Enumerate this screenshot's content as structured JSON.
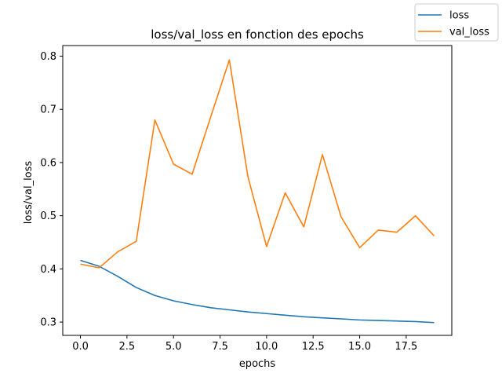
{
  "chart_data": {
    "type": "line",
    "title": "loss/val_loss en fonction des epochs",
    "xlabel": "epochs",
    "ylabel": "loss/val_loss",
    "xlim": [
      -0.95,
      19.95
    ],
    "ylim": [
      0.275,
      0.82
    ],
    "x_ticks": [
      0.0,
      2.5,
      5.0,
      7.5,
      10.0,
      12.5,
      15.0,
      17.5
    ],
    "x_tick_labels": [
      "0.0",
      "2.5",
      "5.0",
      "7.5",
      "10.0",
      "12.5",
      "15.0",
      "17.5"
    ],
    "y_ticks": [
      0.3,
      0.4,
      0.5,
      0.6,
      0.7,
      0.8
    ],
    "y_tick_labels": [
      "0.3",
      "0.4",
      "0.5",
      "0.6",
      "0.7",
      "0.8"
    ],
    "grid": false,
    "legend_position": "top-right (outside plot area)",
    "x": [
      0,
      1,
      2,
      3,
      4,
      5,
      6,
      7,
      8,
      9,
      10,
      11,
      12,
      13,
      14,
      15,
      16,
      17,
      18,
      19
    ],
    "series": [
      {
        "name": "loss",
        "color": "#1f77b4",
        "values": [
          0.416,
          0.405,
          0.386,
          0.365,
          0.35,
          0.34,
          0.333,
          0.327,
          0.323,
          0.319,
          0.316,
          0.313,
          0.31,
          0.308,
          0.306,
          0.304,
          0.303,
          0.302,
          0.301,
          0.299
        ]
      },
      {
        "name": "val_loss",
        "color": "#ff7f0e",
        "values": [
          0.409,
          0.402,
          0.432,
          0.452,
          0.68,
          0.597,
          0.578,
          0.686,
          0.793,
          0.573,
          0.442,
          0.543,
          0.479,
          0.615,
          0.498,
          0.44,
          0.473,
          0.469,
          0.5,
          0.462
        ]
      }
    ]
  }
}
